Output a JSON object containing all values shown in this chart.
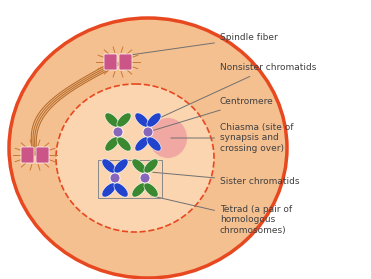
{
  "fig_width": 3.71,
  "fig_height": 2.79,
  "dpi": 100,
  "bg_color": "#ffffff",
  "cell_fill": "#f5c090",
  "cell_edge": "#e84820",
  "nucleus_fill": "#fad5b0",
  "nucleus_edge": "#e84820",
  "spindle_color": "#b87030",
  "centriole_fill": "#cc5588",
  "centriole_spike": "#c87838",
  "chromosome_green": "#3a8830",
  "chromosome_blue": "#2244cc",
  "centromere_color": "#8866bb",
  "chiasma_fill": "#f0a0a0",
  "label_color": "#404040",
  "arrow_color": "#707070",
  "labels": [
    "Spindle fiber",
    "Nonsister chromatids",
    "Centromere",
    "Chiasma (site of\nsynapsis and\ncrossing over)",
    "Sister chromatids",
    "Tetrad (a pair of\nhomologous\nchromosomes)"
  ]
}
